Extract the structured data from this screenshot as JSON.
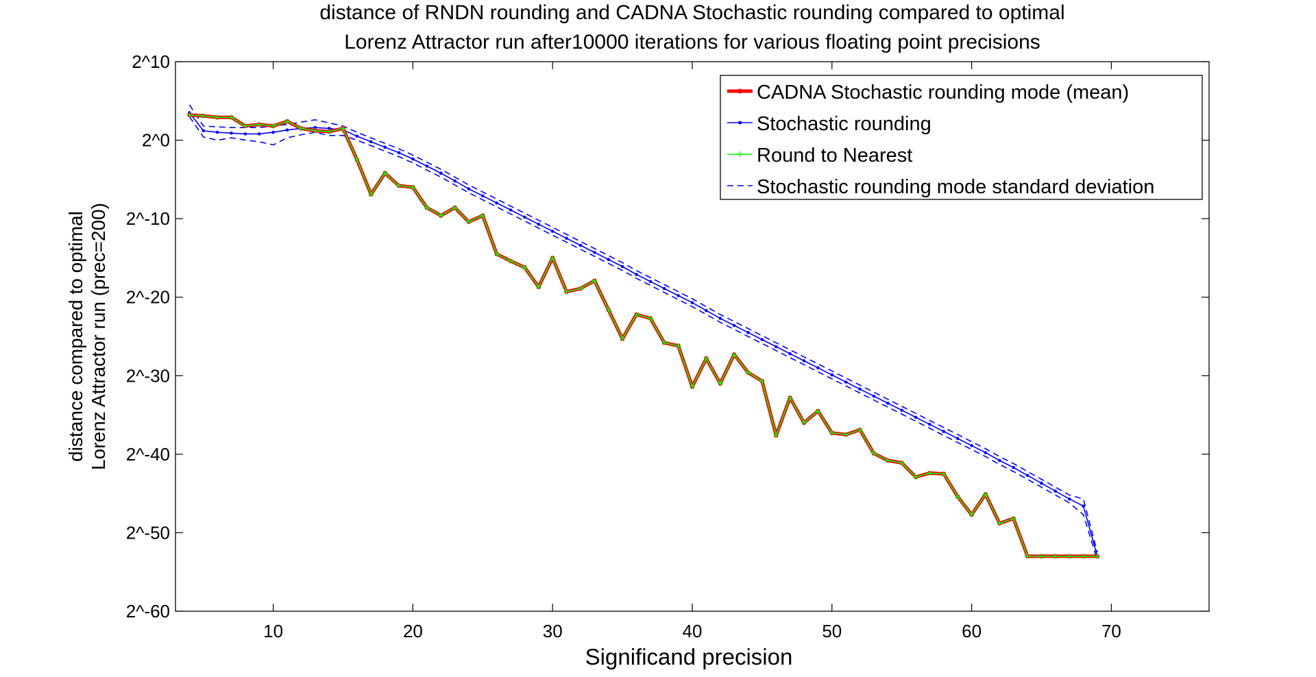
{
  "chart_data": {
    "type": "line",
    "title": [
      "distance of RNDN rounding and CADNA Stochastic rounding compared to optimal",
      "Lorenz Attractor run after10000 iterations for various floating point precisions"
    ],
    "xlabel": "Significand precision",
    "ylabel": [
      "distance compared to optimal",
      "Lorenz Attractor run (prec=200)"
    ],
    "xlim": [
      3,
      77
    ],
    "ylim": [
      -60,
      10
    ],
    "x_ticks": [
      10,
      20,
      30,
      40,
      50,
      60,
      70
    ],
    "y_ticks": [
      {
        "value": 10,
        "label": "2^10"
      },
      {
        "value": 0,
        "label": "2^0"
      },
      {
        "value": -10,
        "label": "2^-10"
      },
      {
        "value": -20,
        "label": "2^-20"
      },
      {
        "value": -30,
        "label": "2^-30"
      },
      {
        "value": -40,
        "label": "2^-40"
      },
      {
        "value": -50,
        "label": "2^-50"
      },
      {
        "value": -60,
        "label": "2^-60"
      }
    ],
    "grid": false,
    "legend_position": "top-right",
    "x": [
      4,
      5,
      6,
      7,
      8,
      9,
      10,
      11,
      12,
      13,
      14,
      15,
      16,
      17,
      18,
      19,
      20,
      21,
      22,
      23,
      24,
      25,
      26,
      27,
      28,
      29,
      30,
      31,
      32,
      33,
      34,
      35,
      36,
      37,
      38,
      39,
      40,
      41,
      42,
      43,
      44,
      45,
      46,
      47,
      48,
      49,
      50,
      51,
      52,
      53,
      54,
      55,
      56,
      57,
      58,
      59,
      60,
      61,
      62,
      63,
      64,
      65,
      66,
      67,
      68,
      69
    ],
    "series": [
      {
        "name": "CADNA Stochastic rounding mode (mean)",
        "color": "#ff0000",
        "style": "thick-line-dot",
        "values": [
          3.2,
          3.1,
          2.9,
          2.9,
          1.8,
          2.0,
          1.8,
          2.4,
          1.5,
          1.2,
          1.1,
          1.5,
          -2.5,
          -6.9,
          -4.2,
          -5.8,
          -6.0,
          -8.6,
          -9.6,
          -8.6,
          -10.4,
          -9.6,
          -14.5,
          -15.4,
          -16.2,
          -18.7,
          -15.0,
          -19.3,
          -18.9,
          -17.9,
          -21.6,
          -25.3,
          -22.2,
          -22.7,
          -25.8,
          -26.2,
          -31.4,
          -27.8,
          -31.0,
          -27.3,
          -29.6,
          -30.7,
          -37.6,
          -32.8,
          -36.0,
          -34.5,
          -37.3,
          -37.5,
          -36.9,
          -39.9,
          -40.8,
          -41.1,
          -42.9,
          -42.4,
          -42.5,
          -45.4,
          -47.7,
          -45.1,
          -48.8,
          -48.2,
          -53.0,
          -53.0,
          -53.0,
          -53.0,
          -53.0,
          -53.0
        ]
      },
      {
        "name": "Stochastic rounding",
        "color": "#0000ff",
        "style": "line-dot",
        "values": [
          3.5,
          1.2,
          1.0,
          0.9,
          0.8,
          0.8,
          1.0,
          1.3,
          1.5,
          1.6,
          1.5,
          1.3,
          0.5,
          -0.2,
          -0.9,
          -1.6,
          -2.4,
          -3.3,
          -4.2,
          -5.2,
          -6.2,
          -7.1,
          -8.0,
          -8.9,
          -9.8,
          -10.7,
          -11.6,
          -12.5,
          -13.4,
          -14.3,
          -15.2,
          -16.1,
          -17.1,
          -18.0,
          -18.9,
          -19.8,
          -20.7,
          -21.7,
          -22.7,
          -23.6,
          -24.5,
          -25.4,
          -26.3,
          -27.2,
          -28.1,
          -29.0,
          -29.9,
          -30.8,
          -31.7,
          -32.6,
          -33.5,
          -34.4,
          -35.3,
          -36.2,
          -37.1,
          -38.0,
          -38.9,
          -39.8,
          -40.8,
          -41.7,
          -42.7,
          -43.7,
          -44.7,
          -45.7,
          -46.6,
          -53.0
        ]
      },
      {
        "name": "Round to Nearest",
        "color": "#00ff00",
        "style": "line-plus",
        "values": [
          3.2,
          3.1,
          2.9,
          2.9,
          1.8,
          2.0,
          1.8,
          2.4,
          1.5,
          1.2,
          1.1,
          1.5,
          -2.5,
          -6.9,
          -4.2,
          -5.8,
          -6.0,
          -8.6,
          -9.6,
          -8.6,
          -10.4,
          -9.6,
          -14.5,
          -15.4,
          -16.2,
          -18.7,
          -15.0,
          -19.3,
          -18.9,
          -17.9,
          -21.6,
          -25.3,
          -22.2,
          -22.7,
          -25.8,
          -26.2,
          -31.4,
          -27.8,
          -31.0,
          -27.3,
          -29.6,
          -30.7,
          -37.6,
          -32.8,
          -36.0,
          -34.5,
          -37.3,
          -37.5,
          -36.9,
          -39.9,
          -40.8,
          -41.1,
          -42.9,
          -42.4,
          -42.5,
          -45.4,
          -47.7,
          -45.1,
          -48.8,
          -48.2,
          -53.0,
          -53.0,
          -53.0,
          -53.0,
          -53.0,
          -53.0
        ]
      },
      {
        "name": "Stochastic rounding mode standard deviation",
        "color": "#0000ff",
        "style": "dashed",
        "upper": [
          4.5,
          1.8,
          1.7,
          1.6,
          1.6,
          1.6,
          1.8,
          2.0,
          2.3,
          2.6,
          2.2,
          1.8,
          1.0,
          0.3,
          -0.4,
          -1.1,
          -1.9,
          -2.8,
          -3.7,
          -4.7,
          -5.7,
          -6.6,
          -7.5,
          -8.4,
          -9.3,
          -10.2,
          -11.1,
          -12.0,
          -12.9,
          -13.8,
          -14.7,
          -15.6,
          -16.6,
          -17.5,
          -18.4,
          -19.3,
          -20.2,
          -21.2,
          -22.2,
          -23.1,
          -24.0,
          -24.9,
          -25.8,
          -26.7,
          -27.6,
          -28.5,
          -29.4,
          -30.3,
          -31.2,
          -32.1,
          -33.0,
          -33.9,
          -34.8,
          -35.7,
          -36.6,
          -37.5,
          -38.4,
          -39.3,
          -40.3,
          -41.2,
          -42.2,
          -43.2,
          -44.2,
          -45.2,
          -45.7,
          -52.5
        ],
        "lower": [
          3.0,
          0.4,
          0.0,
          0.3,
          0.0,
          -0.2,
          -0.6,
          0.3,
          0.7,
          1.0,
          0.6,
          0.6,
          0.0,
          -0.7,
          -1.4,
          -2.1,
          -2.9,
          -3.8,
          -4.7,
          -5.7,
          -6.7,
          -7.6,
          -8.5,
          -9.4,
          -10.3,
          -11.2,
          -12.1,
          -13.0,
          -13.9,
          -14.8,
          -15.7,
          -16.6,
          -17.6,
          -18.5,
          -19.4,
          -20.3,
          -21.2,
          -22.2,
          -23.2,
          -24.1,
          -25.0,
          -25.9,
          -26.8,
          -27.7,
          -28.6,
          -29.5,
          -30.4,
          -31.3,
          -32.2,
          -33.1,
          -34.0,
          -34.9,
          -35.8,
          -36.7,
          -37.6,
          -38.5,
          -39.4,
          -40.3,
          -41.3,
          -42.2,
          -43.2,
          -44.2,
          -45.2,
          -46.2,
          -47.7,
          -53.5
        ]
      }
    ]
  }
}
